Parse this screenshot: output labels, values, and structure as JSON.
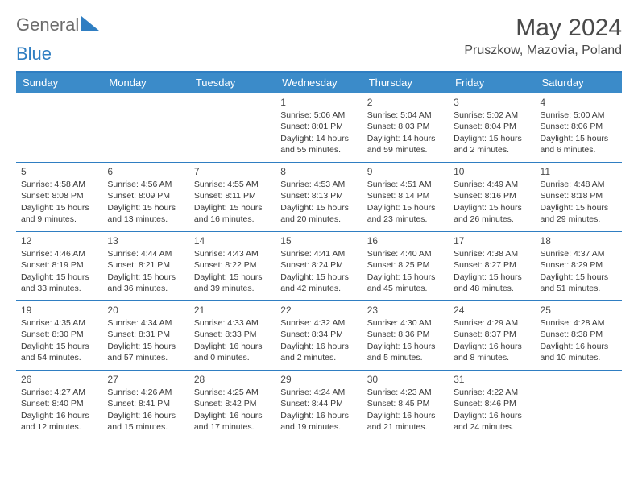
{
  "logo": {
    "text1": "General",
    "text2": "Blue"
  },
  "title": "May 2024",
  "location": "Pruszkow, Mazovia, Poland",
  "colors": {
    "header_bg": "#3b8bc9",
    "header_text": "#ffffff",
    "border": "#2f7ec2",
    "body_text": "#3a3a3a",
    "title_text": "#4a4a4a",
    "logo_gray": "#6b6b6b",
    "logo_blue": "#2f7ec2",
    "background": "#ffffff"
  },
  "day_labels": [
    "Sunday",
    "Monday",
    "Tuesday",
    "Wednesday",
    "Thursday",
    "Friday",
    "Saturday"
  ],
  "weeks": [
    [
      null,
      null,
      null,
      {
        "d": "1",
        "sr": "5:06 AM",
        "ss": "8:01 PM",
        "dl": "14 hours and 55 minutes."
      },
      {
        "d": "2",
        "sr": "5:04 AM",
        "ss": "8:03 PM",
        "dl": "14 hours and 59 minutes."
      },
      {
        "d": "3",
        "sr": "5:02 AM",
        "ss": "8:04 PM",
        "dl": "15 hours and 2 minutes."
      },
      {
        "d": "4",
        "sr": "5:00 AM",
        "ss": "8:06 PM",
        "dl": "15 hours and 6 minutes."
      }
    ],
    [
      {
        "d": "5",
        "sr": "4:58 AM",
        "ss": "8:08 PM",
        "dl": "15 hours and 9 minutes."
      },
      {
        "d": "6",
        "sr": "4:56 AM",
        "ss": "8:09 PM",
        "dl": "15 hours and 13 minutes."
      },
      {
        "d": "7",
        "sr": "4:55 AM",
        "ss": "8:11 PM",
        "dl": "15 hours and 16 minutes."
      },
      {
        "d": "8",
        "sr": "4:53 AM",
        "ss": "8:13 PM",
        "dl": "15 hours and 20 minutes."
      },
      {
        "d": "9",
        "sr": "4:51 AM",
        "ss": "8:14 PM",
        "dl": "15 hours and 23 minutes."
      },
      {
        "d": "10",
        "sr": "4:49 AM",
        "ss": "8:16 PM",
        "dl": "15 hours and 26 minutes."
      },
      {
        "d": "11",
        "sr": "4:48 AM",
        "ss": "8:18 PM",
        "dl": "15 hours and 29 minutes."
      }
    ],
    [
      {
        "d": "12",
        "sr": "4:46 AM",
        "ss": "8:19 PM",
        "dl": "15 hours and 33 minutes."
      },
      {
        "d": "13",
        "sr": "4:44 AM",
        "ss": "8:21 PM",
        "dl": "15 hours and 36 minutes."
      },
      {
        "d": "14",
        "sr": "4:43 AM",
        "ss": "8:22 PM",
        "dl": "15 hours and 39 minutes."
      },
      {
        "d": "15",
        "sr": "4:41 AM",
        "ss": "8:24 PM",
        "dl": "15 hours and 42 minutes."
      },
      {
        "d": "16",
        "sr": "4:40 AM",
        "ss": "8:25 PM",
        "dl": "15 hours and 45 minutes."
      },
      {
        "d": "17",
        "sr": "4:38 AM",
        "ss": "8:27 PM",
        "dl": "15 hours and 48 minutes."
      },
      {
        "d": "18",
        "sr": "4:37 AM",
        "ss": "8:29 PM",
        "dl": "15 hours and 51 minutes."
      }
    ],
    [
      {
        "d": "19",
        "sr": "4:35 AM",
        "ss": "8:30 PM",
        "dl": "15 hours and 54 minutes."
      },
      {
        "d": "20",
        "sr": "4:34 AM",
        "ss": "8:31 PM",
        "dl": "15 hours and 57 minutes."
      },
      {
        "d": "21",
        "sr": "4:33 AM",
        "ss": "8:33 PM",
        "dl": "16 hours and 0 minutes."
      },
      {
        "d": "22",
        "sr": "4:32 AM",
        "ss": "8:34 PM",
        "dl": "16 hours and 2 minutes."
      },
      {
        "d": "23",
        "sr": "4:30 AM",
        "ss": "8:36 PM",
        "dl": "16 hours and 5 minutes."
      },
      {
        "d": "24",
        "sr": "4:29 AM",
        "ss": "8:37 PM",
        "dl": "16 hours and 8 minutes."
      },
      {
        "d": "25",
        "sr": "4:28 AM",
        "ss": "8:38 PM",
        "dl": "16 hours and 10 minutes."
      }
    ],
    [
      {
        "d": "26",
        "sr": "4:27 AM",
        "ss": "8:40 PM",
        "dl": "16 hours and 12 minutes."
      },
      {
        "d": "27",
        "sr": "4:26 AM",
        "ss": "8:41 PM",
        "dl": "16 hours and 15 minutes."
      },
      {
        "d": "28",
        "sr": "4:25 AM",
        "ss": "8:42 PM",
        "dl": "16 hours and 17 minutes."
      },
      {
        "d": "29",
        "sr": "4:24 AM",
        "ss": "8:44 PM",
        "dl": "16 hours and 19 minutes."
      },
      {
        "d": "30",
        "sr": "4:23 AM",
        "ss": "8:45 PM",
        "dl": "16 hours and 21 minutes."
      },
      {
        "d": "31",
        "sr": "4:22 AM",
        "ss": "8:46 PM",
        "dl": "16 hours and 24 minutes."
      },
      null
    ]
  ],
  "labels": {
    "sunrise": "Sunrise:",
    "sunset": "Sunset:",
    "daylight": "Daylight:"
  }
}
